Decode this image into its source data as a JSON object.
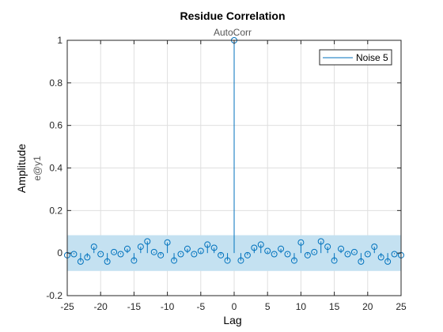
{
  "chart_data": {
    "type": "stem",
    "title": "Residue Correlation",
    "subtitle": "AutoCorr",
    "xlabel": "Lag",
    "ylabel": "Amplitude",
    "ylabel_sub": "e@y1",
    "xlim": [
      -25,
      25
    ],
    "ylim": [
      -0.2,
      1
    ],
    "xticks": [
      -25,
      -20,
      -15,
      -10,
      -5,
      0,
      5,
      10,
      15,
      20,
      25
    ],
    "xtick_labels": [
      "-25",
      "-20",
      "-15",
      "-10",
      "-5",
      "0",
      "5",
      "10",
      "15",
      "20",
      "25"
    ],
    "yticks": [
      -0.2,
      0,
      0.2,
      0.4,
      0.6,
      0.8,
      1
    ],
    "ytick_labels": [
      "-0.2",
      "0",
      "0.2",
      "0.4",
      "0.6",
      "0.8",
      "1"
    ],
    "grid": true,
    "legend_position": "top-right",
    "confidence_band": [
      -0.084,
      0.084
    ],
    "band_color": "#c4e1f1",
    "series_color": "#0072bd",
    "series": [
      {
        "name": "Noise 5",
        "x": [
          -25,
          -24,
          -23,
          -22,
          -21,
          -20,
          -19,
          -18,
          -17,
          -16,
          -15,
          -14,
          -13,
          -12,
          -11,
          -10,
          -9,
          -8,
          -7,
          -6,
          -5,
          -4,
          -3,
          -2,
          -1,
          0,
          1,
          2,
          3,
          4,
          5,
          6,
          7,
          8,
          9,
          10,
          11,
          12,
          13,
          14,
          15,
          16,
          17,
          18,
          19,
          20,
          21,
          22,
          23,
          24,
          25
        ],
        "values": [
          -0.01,
          -0.005,
          -0.04,
          -0.02,
          0.03,
          -0.005,
          -0.04,
          0.005,
          -0.005,
          0.02,
          -0.035,
          0.03,
          0.055,
          0.005,
          -0.01,
          0.05,
          -0.035,
          -0.005,
          0.02,
          -0.005,
          0.01,
          0.04,
          0.025,
          -0.01,
          -0.035,
          1,
          -0.035,
          -0.01,
          0.025,
          0.04,
          0.01,
          -0.005,
          0.02,
          -0.005,
          -0.035,
          0.05,
          -0.01,
          0.005,
          0.055,
          0.03,
          -0.035,
          0.02,
          -0.005,
          0.005,
          -0.04,
          -0.005,
          0.03,
          -0.02,
          -0.04,
          -0.005,
          -0.01
        ]
      }
    ]
  }
}
